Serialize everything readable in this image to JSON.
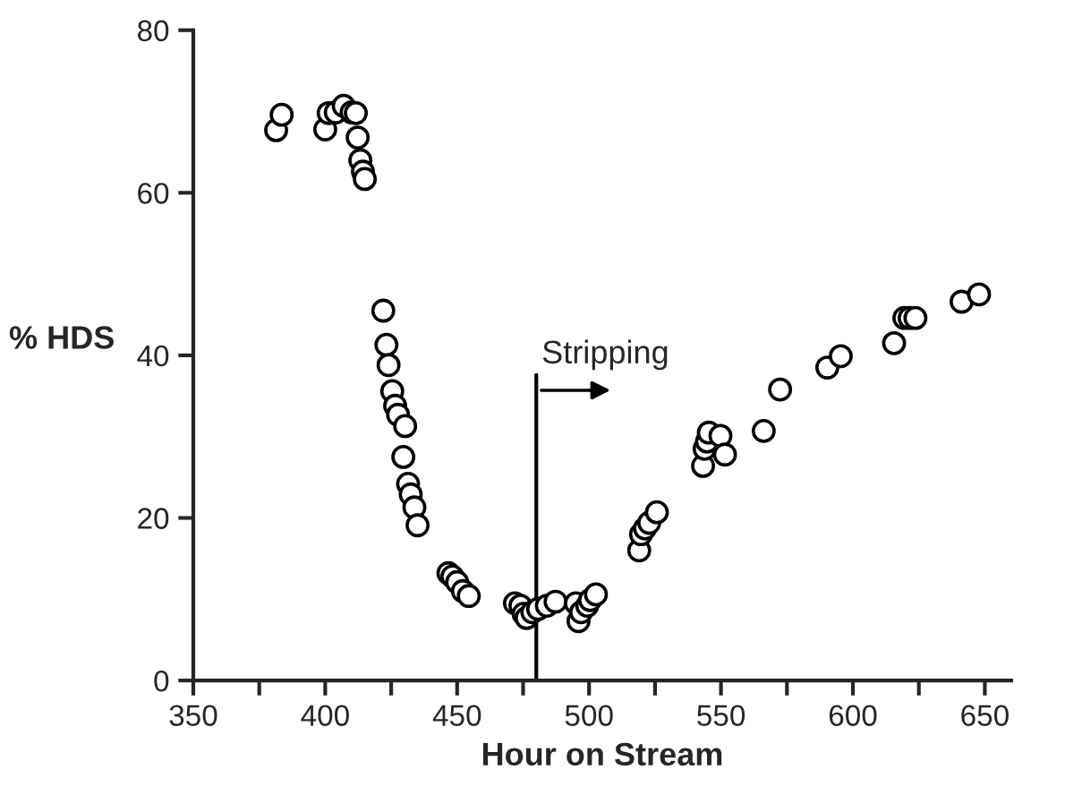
{
  "chart_data": {
    "type": "scatter",
    "xlabel": "Hour on Stream",
    "ylabel": "% HDS",
    "x": [
      381.4,
      383.5,
      400,
      401.3,
      404,
      407,
      410,
      411.6,
      412.3,
      413.3,
      414.3,
      415,
      422,
      423.2,
      424,
      425.4,
      426.5,
      427.6,
      430.3,
      429.6,
      431.4,
      432.4,
      433.8,
      435,
      446.7,
      448.2,
      450,
      452.2,
      454.4,
      471.9,
      474,
      475.2,
      476.3,
      478.5,
      480.7,
      484,
      487.3,
      495,
      496,
      497,
      499.3,
      500.4,
      502.6,
      519,
      519.7,
      521.2,
      522.8,
      525.7,
      543.2,
      543.8,
      544.7,
      545.4,
      549.8,
      551.5,
      566.2,
      572.4,
      590.3,
      595.4,
      615.6,
      619.5,
      621.5,
      623.7,
      641.2,
      647.8
    ],
    "series": [
      {
        "color": "#000000",
        "values": [
          67.7,
          69.6,
          67.8,
          69.8,
          69.9,
          70.7,
          69.9,
          69.8,
          66.8,
          64.0,
          62.6,
          61.7,
          45.5,
          41.3,
          38.8,
          35.6,
          33.8,
          32.7,
          31.3,
          27.5,
          24.2,
          22.9,
          21.3,
          19.1,
          13.2,
          12.8,
          12.1,
          11.0,
          10.4,
          9.5,
          9.2,
          8.2,
          7.7,
          8.4,
          8.8,
          9.2,
          9.7,
          9.5,
          7.3,
          8.4,
          9.2,
          9.9,
          10.6,
          16.0,
          18.0,
          18.7,
          19.4,
          20.7,
          26.4,
          28.5,
          29.4,
          30.5,
          30.1,
          27.8,
          30.7,
          35.8,
          38.5,
          39.9,
          41.5,
          44.6,
          44.6,
          44.6,
          46.6,
          47.5
        ]
      }
    ],
    "marker": "circle",
    "xlim": [
      350,
      660
    ],
    "xticks": [
      350,
      {
        "value": 375,
        "label": null
      },
      400,
      {
        "value": 425,
        "label": null
      },
      450,
      {
        "value": 475,
        "label": null
      },
      500,
      {
        "value": 525,
        "label": null
      },
      550,
      {
        "value": 575,
        "label": null
      },
      600,
      {
        "value": 625,
        "label": null
      },
      650
    ],
    "ylim": [
      0,
      80
    ],
    "yticks": [
      0,
      20,
      40,
      60,
      80
    ],
    "grid": false,
    "ref_lines": [
      {
        "axis": "x",
        "value": 480
      }
    ],
    "annotations": [
      {
        "text": "Stripping",
        "x": 480,
        "y": 35.7
      }
    ]
  }
}
